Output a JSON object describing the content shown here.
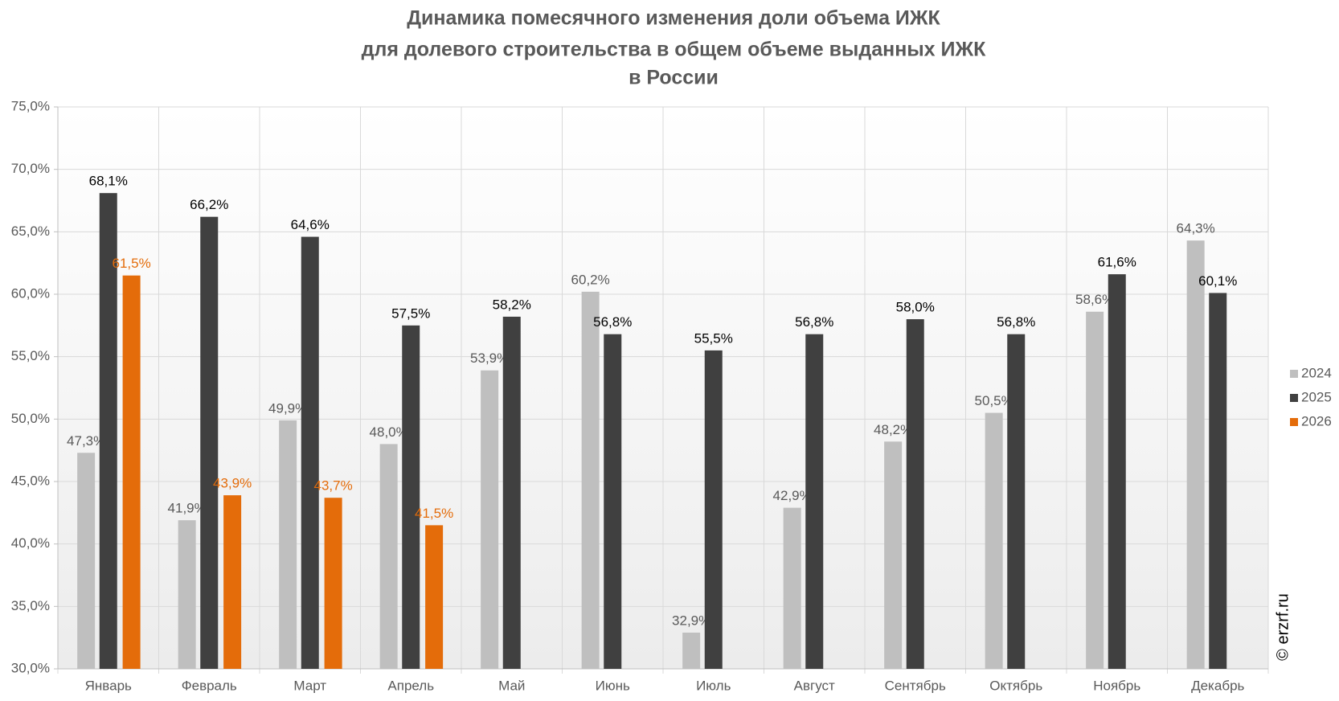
{
  "chart_data": {
    "type": "bar",
    "title": [
      "Динамика помесячного изменения доли объема ИЖК",
      "для долевого строительства в общем объеме выданных ИЖК",
      "в России"
    ],
    "watermark": "© erzrf.ru",
    "categories": [
      "Январь",
      "Февраль",
      "Март",
      "Апрель",
      "Май",
      "Июнь",
      "Июль",
      "Август",
      "Сентябрь",
      "Октябрь",
      "Ноябрь",
      "Декабрь"
    ],
    "series": [
      {
        "name": "2024",
        "color": "#bfbfbf",
        "label_color": "#595959",
        "values": [
          47.3,
          41.9,
          49.9,
          48.0,
          53.9,
          60.2,
          32.9,
          42.9,
          48.2,
          50.5,
          58.6,
          64.3
        ],
        "value_labels": [
          "47,3%",
          "41,9%",
          "49,9%",
          "48,0%",
          "53,9%",
          "60,2%",
          "32,9%",
          "42,9%",
          "48,2%",
          "50,5%",
          "58,6%",
          "64,3%"
        ]
      },
      {
        "name": "2025",
        "color": "#404040",
        "label_color": "#000000",
        "values": [
          68.1,
          66.2,
          64.6,
          57.5,
          58.2,
          56.8,
          55.5,
          56.8,
          58.0,
          56.8,
          61.6,
          60.1
        ],
        "value_labels": [
          "68,1%",
          "66,2%",
          "64,6%",
          "57,5%",
          "58,2%",
          "56,8%",
          "55,5%",
          "56,8%",
          "58,0%",
          "56,8%",
          "61,6%",
          "60,1%"
        ]
      },
      {
        "name": "2026",
        "color": "#e46c0a",
        "label_color": "#e46c0a",
        "values": [
          61.5,
          43.9,
          43.7,
          41.5,
          null,
          null,
          null,
          null,
          null,
          null,
          null,
          null
        ],
        "value_labels": [
          "61,5%",
          "43,9%",
          "43,7%",
          "41,5%",
          null,
          null,
          null,
          null,
          null,
          null,
          null,
          null
        ]
      }
    ],
    "ylim": [
      30,
      75
    ],
    "yticks": [
      {
        "value": 30,
        "label": "30,0%"
      },
      {
        "value": 35,
        "label": "35,0%"
      },
      {
        "value": 40,
        "label": "40,0%"
      },
      {
        "value": 45,
        "label": "45,0%"
      },
      {
        "value": 50,
        "label": "50,0%"
      },
      {
        "value": 55,
        "label": "55,0%"
      },
      {
        "value": 60,
        "label": "60,0%"
      },
      {
        "value": 65,
        "label": "65,0%"
      },
      {
        "value": 70,
        "label": "70,0%"
      },
      {
        "value": 75,
        "label": "75,0%"
      }
    ],
    "grid": true,
    "legend": "right"
  }
}
